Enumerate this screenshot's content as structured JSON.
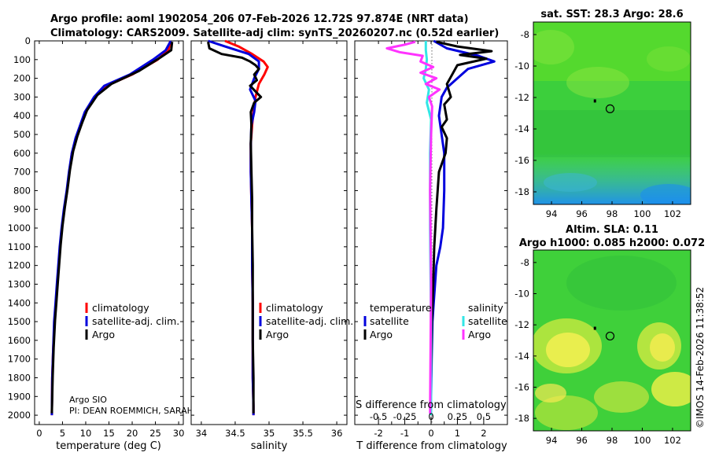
{
  "titles": {
    "line1": "Argo profile: aoml 1902054_206 07-Feb-2026 12.72S 97.874E (NRT data)",
    "line2": "Climatology: CARS2009. Satellite-adj clim: synTS_20260207.nc (0.52d earlier)",
    "sst": "sat. SST: 28.3 Argo: 28.6",
    "sla1": "Altim. SLA: 0.11",
    "sla2": "Argo h1000: 0.085 h2000: 0.072",
    "stamp": "©IMOS 14-Feb-2026 11:38:52"
  },
  "credits": {
    "line1": "Argo SIO",
    "line2": "PI: DEAN ROEMMICH, SARAH"
  },
  "legends": {
    "climatology": "climatology",
    "satellite_adj": "satellite-adj. clim.",
    "argo": "Argo",
    "temperature": "temperature",
    "salinity": "salinity",
    "satellite": "satellite",
    "s_diff": "S difference from climatology"
  },
  "colors": {
    "climatology": "#ff0000",
    "satellite_adj": "#0000dd",
    "argo": "#000000",
    "s_satellite": "#33e6e6",
    "s_argo": "#ff33ff"
  },
  "chart_data": [
    {
      "type": "line",
      "name": "temperature",
      "xlabel": "temperature (deg C)",
      "ylabel": "depth",
      "xlim": [
        -1,
        31
      ],
      "ylim": [
        2050,
        0
      ],
      "xticks": [
        0,
        5,
        10,
        15,
        20,
        25,
        30
      ],
      "yticks": [
        0,
        100,
        200,
        300,
        400,
        500,
        600,
        700,
        800,
        900,
        1000,
        1100,
        1200,
        1300,
        1400,
        1500,
        1600,
        1700,
        1800,
        1900,
        2000
      ],
      "series": [
        {
          "name": "climatology",
          "x": [
            28.2,
            27.8,
            25.5,
            20.0,
            14.5,
            12.0,
            10.0,
            9.0,
            8.0,
            7.0,
            6.5,
            6.0,
            5.4,
            4.9,
            4.5,
            4.2,
            3.9,
            3.6,
            3.3,
            3.0,
            2.8,
            2.7
          ],
          "depth": [
            0,
            50,
            100,
            180,
            240,
            300,
            380,
            450,
            520,
            600,
            700,
            800,
            900,
            1000,
            1100,
            1200,
            1300,
            1400,
            1500,
            1650,
            1800,
            2000
          ]
        },
        {
          "name": "satellite-adj. clim.",
          "x": [
            28.3,
            27.2,
            24.5,
            19.5,
            14.0,
            11.8,
            9.8,
            8.8,
            7.8,
            7.0,
            6.4,
            5.9,
            5.3,
            4.8,
            4.4,
            4.1,
            3.8,
            3.5,
            3.2,
            3.0,
            2.8,
            2.7
          ],
          "depth": [
            0,
            50,
            100,
            180,
            240,
            300,
            380,
            450,
            520,
            600,
            700,
            800,
            900,
            1000,
            1100,
            1200,
            1300,
            1400,
            1500,
            1650,
            1800,
            2000
          ]
        },
        {
          "name": "Argo",
          "x": [
            28.6,
            28.4,
            26.0,
            21.5,
            15.5,
            12.5,
            10.3,
            9.2,
            8.2,
            7.3,
            6.6,
            6.1,
            5.5,
            5.0,
            4.6,
            4.3,
            4.0,
            3.7,
            3.4,
            3.1,
            2.9,
            2.7
          ],
          "depth": [
            5,
            50,
            90,
            160,
            230,
            290,
            370,
            440,
            510,
            590,
            690,
            790,
            890,
            990,
            1090,
            1190,
            1290,
            1390,
            1490,
            1640,
            1790,
            1990
          ]
        }
      ]
    },
    {
      "type": "line",
      "name": "salinity",
      "xlabel": "salinity",
      "xlim": [
        33.85,
        36.15
      ],
      "ylim": [
        2050,
        0
      ],
      "xticks": [
        34,
        34.5,
        35,
        35.5,
        36
      ],
      "series": [
        {
          "name": "climatology",
          "x": [
            34.35,
            34.55,
            34.75,
            34.92,
            34.98,
            34.93,
            34.85,
            34.8,
            34.77,
            34.75,
            34.73,
            34.73,
            34.74,
            34.75,
            34.75,
            34.76,
            34.76,
            34.76,
            34.77,
            34.77
          ],
          "depth": [
            0,
            30,
            70,
            110,
            140,
            180,
            230,
            300,
            380,
            450,
            550,
            700,
            850,
            1000,
            1200,
            1400,
            1600,
            1800,
            1950,
            2000
          ]
        },
        {
          "name": "satellite-adj. clim.",
          "x": [
            34.1,
            34.35,
            34.7,
            34.85,
            34.85,
            34.78,
            34.72,
            34.8,
            34.78,
            34.74,
            34.73,
            34.73,
            34.74,
            34.75,
            34.75,
            34.76,
            34.76,
            34.76,
            34.77,
            34.77
          ],
          "depth": [
            0,
            30,
            70,
            110,
            150,
            200,
            260,
            320,
            380,
            450,
            550,
            700,
            850,
            1000,
            1200,
            1400,
            1600,
            1800,
            1950,
            2000
          ]
        },
        {
          "name": "Argo",
          "x": [
            34.1,
            34.12,
            34.3,
            34.6,
            34.72,
            34.8,
            34.85,
            34.78,
            34.82,
            34.72,
            34.8,
            34.88,
            34.78,
            34.73,
            34.74,
            34.73,
            34.74,
            34.75,
            34.75,
            34.76,
            34.76,
            34.76,
            34.77,
            34.77
          ],
          "depth": [
            5,
            40,
            70,
            90,
            110,
            130,
            150,
            180,
            210,
            240,
            270,
            300,
            330,
            380,
            450,
            550,
            700,
            850,
            1000,
            1200,
            1400,
            1600,
            1800,
            1990
          ]
        }
      ]
    },
    {
      "type": "line",
      "name": "differences",
      "xlabel": "T difference from climatology",
      "x2label": "S difference from climatology",
      "xlim": [
        -2.9,
        2.9
      ],
      "x2lim": [
        -0.725,
        0.725
      ],
      "ylim": [
        2050,
        0
      ],
      "xticks": [
        -2,
        -1.5,
        -1,
        -0.5,
        0,
        0.5,
        1,
        1.5,
        2
      ],
      "xticklabels": [
        "-2",
        "",
        "-1",
        "",
        "0",
        "",
        "1",
        "",
        "2"
      ],
      "x2ticks": [
        -0.5,
        -0.25,
        0,
        0.25,
        0.5
      ],
      "x2ticklabels": [
        "-0.5",
        "-0.25",
        "0",
        "0.25",
        "0.5"
      ],
      "series": [
        {
          "name": "temperature satellite",
          "axis": "T",
          "x": [
            0.1,
            0.6,
            1.8,
            2.4,
            1.4,
            1.0,
            0.6,
            0.4,
            0.3,
            0.5,
            0.5,
            0.45,
            0.35,
            0.2,
            0.15,
            0.1,
            0.05,
            0.02,
            0.0,
            -0.02
          ],
          "depth": [
            0,
            40,
            80,
            110,
            150,
            200,
            250,
            300,
            400,
            600,
            800,
            1000,
            1100,
            1200,
            1300,
            1400,
            1500,
            1700,
            1900,
            2000
          ]
        },
        {
          "name": "temperature Argo",
          "axis": "T",
          "x": [
            0.2,
            1.0,
            2.3,
            1.1,
            2.1,
            1.0,
            0.8,
            0.6,
            0.75,
            0.5,
            0.6,
            0.4,
            0.6,
            0.55,
            0.3,
            0.2,
            0.12,
            0.08,
            0.03,
            0.0,
            -0.02
          ],
          "depth": [
            5,
            30,
            55,
            75,
            95,
            130,
            180,
            230,
            300,
            340,
            420,
            460,
            520,
            600,
            700,
            900,
            1100,
            1300,
            1500,
            1800,
            1990
          ]
        },
        {
          "name": "salinity satellite",
          "axis": "S",
          "x": [
            -0.05,
            -0.05,
            -0.04,
            -0.05,
            -0.07,
            -0.02,
            -0.04,
            0.0,
            -0.01,
            -0.01,
            0.0,
            0.0
          ],
          "depth": [
            0,
            50,
            100,
            150,
            200,
            260,
            330,
            420,
            600,
            1000,
            1500,
            2000
          ]
        },
        {
          "name": "salinity Argo",
          "axis": "S",
          "x": [
            -0.15,
            -0.25,
            -0.42,
            -0.3,
            -0.08,
            -0.1,
            0.02,
            -0.1,
            0.05,
            -0.05,
            0.08,
            -0.02,
            0.01,
            0.0,
            -0.01,
            0.0,
            -0.01
          ],
          "depth": [
            5,
            20,
            40,
            60,
            80,
            110,
            140,
            170,
            200,
            230,
            260,
            300,
            350,
            500,
            800,
            1300,
            1990
          ]
        }
      ]
    },
    {
      "type": "heatmap",
      "name": "sat-sst-map",
      "xlim": [
        92.8,
        103.2
      ],
      "ylim": [
        -18.8,
        -7.2
      ],
      "xticks": [
        94,
        96,
        98,
        100,
        102
      ],
      "yticks": [
        -8,
        -10,
        -12,
        -14,
        -16,
        -18
      ],
      "float_position": [
        97.87,
        -12.72
      ]
    },
    {
      "type": "heatmap",
      "name": "altim-sla-map",
      "xlim": [
        92.8,
        103.2
      ],
      "ylim": [
        -18.8,
        -7.2
      ],
      "xticks": [
        94,
        96,
        98,
        100,
        102
      ],
      "yticks": [
        -8,
        -10,
        -12,
        -14,
        -16,
        -18
      ],
      "float_position": [
        97.87,
        -12.72
      ]
    }
  ]
}
